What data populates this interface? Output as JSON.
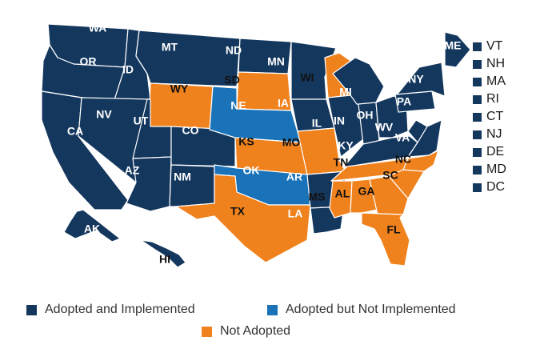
{
  "colors": {
    "adopted_implemented": "#14375e",
    "adopted_not_implemented": "#1a73b8",
    "not_adopted": "#f0821e",
    "label_on_dark": "#ffffff",
    "label_on_orange": "#111111"
  },
  "states": [
    {
      "abbr": "WA",
      "status": "adopted_implemented"
    },
    {
      "abbr": "OR",
      "status": "adopted_implemented"
    },
    {
      "abbr": "CA",
      "status": "adopted_implemented"
    },
    {
      "abbr": "ID",
      "status": "adopted_implemented"
    },
    {
      "abbr": "NV",
      "status": "adopted_implemented"
    },
    {
      "abbr": "MT",
      "status": "adopted_implemented"
    },
    {
      "abbr": "WY",
      "status": "not_adopted"
    },
    {
      "abbr": "UT",
      "status": "adopted_implemented"
    },
    {
      "abbr": "AZ",
      "status": "adopted_implemented"
    },
    {
      "abbr": "CO",
      "status": "adopted_implemented"
    },
    {
      "abbr": "NM",
      "status": "adopted_implemented"
    },
    {
      "abbr": "ND",
      "status": "adopted_implemented"
    },
    {
      "abbr": "SD",
      "status": "not_adopted"
    },
    {
      "abbr": "NE",
      "status": "adopted_not_implemented"
    },
    {
      "abbr": "KS",
      "status": "not_adopted"
    },
    {
      "abbr": "OK",
      "status": "adopted_not_implemented"
    },
    {
      "abbr": "TX",
      "status": "not_adopted"
    },
    {
      "abbr": "MN",
      "status": "adopted_implemented"
    },
    {
      "abbr": "IA",
      "status": "adopted_implemented"
    },
    {
      "abbr": "MO",
      "status": "not_adopted"
    },
    {
      "abbr": "AR",
      "status": "adopted_implemented"
    },
    {
      "abbr": "LA",
      "status": "adopted_implemented"
    },
    {
      "abbr": "WI",
      "status": "not_adopted"
    },
    {
      "abbr": "IL",
      "status": "adopted_implemented"
    },
    {
      "abbr": "MI",
      "status": "adopted_implemented"
    },
    {
      "abbr": "IN",
      "status": "adopted_implemented"
    },
    {
      "abbr": "OH",
      "status": "adopted_implemented"
    },
    {
      "abbr": "KY",
      "status": "adopted_implemented"
    },
    {
      "abbr": "TN",
      "status": "not_adopted"
    },
    {
      "abbr": "MS",
      "status": "not_adopted"
    },
    {
      "abbr": "AL",
      "status": "not_adopted"
    },
    {
      "abbr": "GA",
      "status": "not_adopted"
    },
    {
      "abbr": "FL",
      "status": "not_adopted"
    },
    {
      "abbr": "SC",
      "status": "not_adopted"
    },
    {
      "abbr": "NC",
      "status": "not_adopted"
    },
    {
      "abbr": "VA",
      "status": "adopted_implemented"
    },
    {
      "abbr": "WV",
      "status": "adopted_implemented"
    },
    {
      "abbr": "PA",
      "status": "adopted_implemented"
    },
    {
      "abbr": "NY",
      "status": "adopted_implemented"
    },
    {
      "abbr": "ME",
      "status": "adopted_implemented"
    },
    {
      "abbr": "AK",
      "status": "adopted_implemented"
    },
    {
      "abbr": "HI",
      "status": "adopted_implemented"
    }
  ],
  "northeast_list": [
    {
      "abbr": "VT",
      "status": "adopted_implemented"
    },
    {
      "abbr": "NH",
      "status": "adopted_implemented"
    },
    {
      "abbr": "MA",
      "status": "adopted_implemented"
    },
    {
      "abbr": "RI",
      "status": "adopted_implemented"
    },
    {
      "abbr": "CT",
      "status": "adopted_implemented"
    },
    {
      "abbr": "NJ",
      "status": "adopted_implemented"
    },
    {
      "abbr": "DE",
      "status": "adopted_implemented"
    },
    {
      "abbr": "MD",
      "status": "adopted_implemented"
    },
    {
      "abbr": "DC",
      "status": "adopted_implemented"
    }
  ],
  "legend": [
    {
      "key": "adopted_implemented",
      "label": "Adopted and Implemented"
    },
    {
      "key": "adopted_not_implemented",
      "label": "Adopted but Not Implemented"
    },
    {
      "key": "not_adopted",
      "label": "Not Adopted"
    }
  ]
}
